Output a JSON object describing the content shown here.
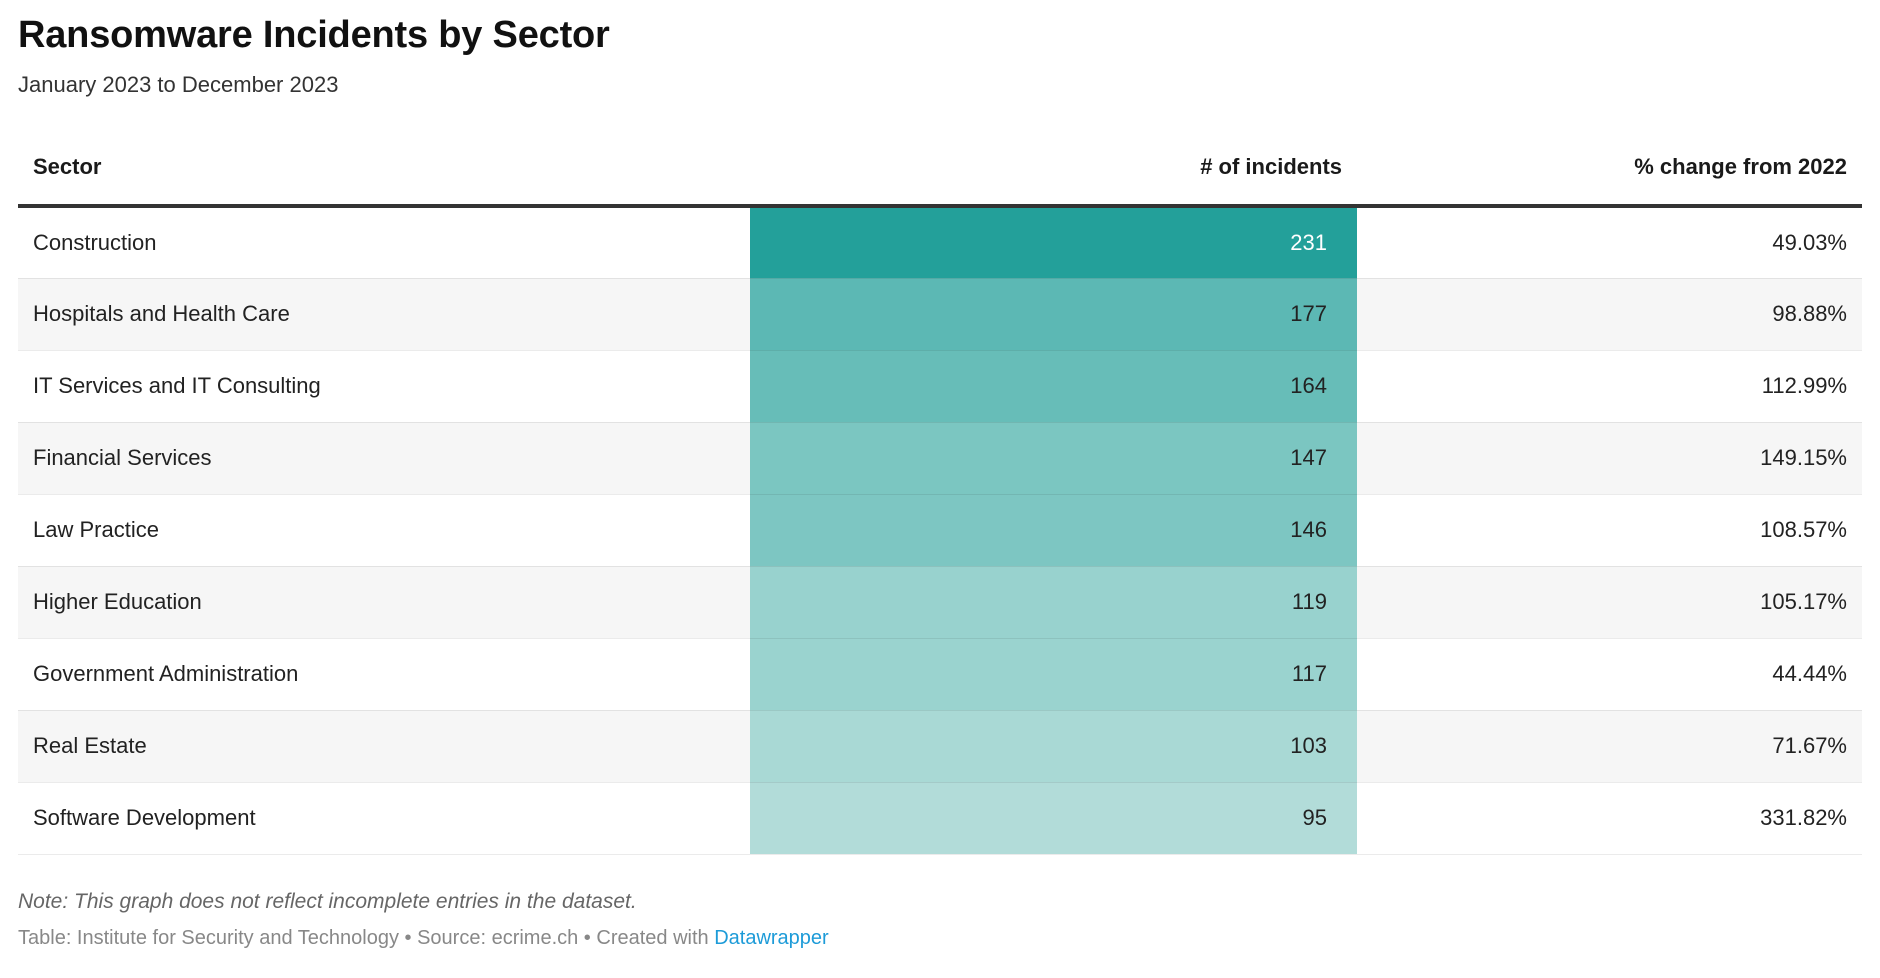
{
  "header": {
    "title": "Ransomware Incidents by Sector",
    "subtitle": "January 2023 to December 2023"
  },
  "table": {
    "columns": [
      "Sector",
      "# of incidents",
      "% change from 2022"
    ],
    "rows": [
      {
        "sector": "Construction",
        "incidents": "231",
        "change": "49.03%",
        "heat_bg": "#23a09a",
        "heat_fg": "#ffffff"
      },
      {
        "sector": "Hospitals and Health Care",
        "incidents": "177",
        "change": "98.88%",
        "heat_bg": "#5cb8b4",
        "heat_fg": "#222222"
      },
      {
        "sector": "IT Services and IT Consulting",
        "incidents": "164",
        "change": "112.99%",
        "heat_bg": "#67bdb8",
        "heat_fg": "#222222"
      },
      {
        "sector": "Financial Services",
        "incidents": "147",
        "change": "149.15%",
        "heat_bg": "#7bc6c1",
        "heat_fg": "#222222"
      },
      {
        "sector": "Law Practice",
        "incidents": "146",
        "change": "108.57%",
        "heat_bg": "#7dc6c2",
        "heat_fg": "#222222"
      },
      {
        "sector": "Higher Education",
        "incidents": "119",
        "change": "105.17%",
        "heat_bg": "#98d2ce",
        "heat_fg": "#222222"
      },
      {
        "sector": "Government Administration",
        "incidents": "117",
        "change": "44.44%",
        "heat_bg": "#9ad3cf",
        "heat_fg": "#222222"
      },
      {
        "sector": "Real Estate",
        "incidents": "103",
        "change": "71.67%",
        "heat_bg": "#a9d9d5",
        "heat_fg": "#222222"
      },
      {
        "sector": "Software Development",
        "incidents": "95",
        "change": "331.82%",
        "heat_bg": "#b2dcd9",
        "heat_fg": "#222222"
      }
    ]
  },
  "footer": {
    "note": "Note: This graph does not reflect incomplete entries in the dataset.",
    "credit_prefix": "Table: Institute for Security and Technology • Source: ecrime.ch • Created with ",
    "credit_link_label": "Datawrapper"
  },
  "colors": {
    "link_blue": "#1d9bd8",
    "header_border": "#333333",
    "stripe_gray": "#f6f6f6",
    "heat_max": "#23a09a",
    "heat_min": "#b2dcd9"
  },
  "chart_data": {
    "type": "table",
    "title": "Ransomware Incidents by Sector",
    "subtitle": "January 2023 to December 2023",
    "columns": [
      "Sector",
      "# of incidents",
      "% change from 2022"
    ],
    "categories": [
      "Construction",
      "Hospitals and Health Care",
      "IT Services and IT Consulting",
      "Financial Services",
      "Law Practice",
      "Higher Education",
      "Government Administration",
      "Real Estate",
      "Software Development"
    ],
    "series": [
      {
        "name": "# of incidents",
        "values": [
          231,
          177,
          164,
          147,
          146,
          119,
          117,
          103,
          95
        ]
      },
      {
        "name": "% change from 2022",
        "values": [
          49.03,
          98.88,
          112.99,
          149.15,
          108.57,
          105.17,
          44.44,
          71.67,
          331.82
        ]
      }
    ],
    "heatmap": {
      "column": "# of incidents",
      "domain": [
        95,
        231
      ],
      "color_min": "#b2dcd9",
      "color_max": "#23a09a"
    },
    "note": "Note: This graph does not reflect incomplete entries in the dataset.",
    "source": "Table: Institute for Security and Technology • Source: ecrime.ch • Created with Datawrapper"
  }
}
